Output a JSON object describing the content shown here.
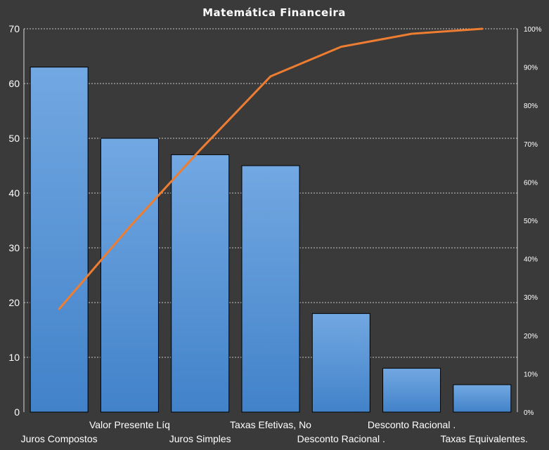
{
  "chart_data": {
    "type": "bar",
    "title": "Matemática Financeira",
    "categories": [
      "Juros Compostos",
      "Valor Presente Líq",
      "Juros Simples",
      "Taxas Efetivas, No",
      "Desconto Racional .",
      "Desconto Racional  .",
      "Taxas Equivalentes."
    ],
    "series": [
      {
        "type": "bar",
        "values": [
          63,
          50,
          47,
          45,
          18,
          8,
          5
        ],
        "color": "#4e92d8",
        "axis": "left"
      },
      {
        "type": "line",
        "values": [
          26.9,
          48.3,
          68.4,
          87.6,
          95.3,
          98.7,
          100
        ],
        "color": "#ed7d31",
        "axis": "right"
      }
    ],
    "ylim": [
      0,
      70
    ],
    "yticks": [
      "0",
      "10",
      "20",
      "30",
      "40",
      "50",
      "60",
      "70"
    ],
    "y2lim": [
      0,
      100
    ],
    "y2ticks": [
      "0%",
      "10%",
      "20%",
      "30%",
      "40%",
      "50%",
      "60%",
      "70%",
      "80%",
      "90%",
      "100%"
    ],
    "xlabel": "",
    "ylabel": "",
    "grid": true,
    "legend": "none",
    "colors": {
      "background": "#3a3a3a",
      "bar": "#4e92d8",
      "line": "#ed7d31",
      "grid": "#c8c8c8",
      "text": "#ffffff"
    }
  }
}
